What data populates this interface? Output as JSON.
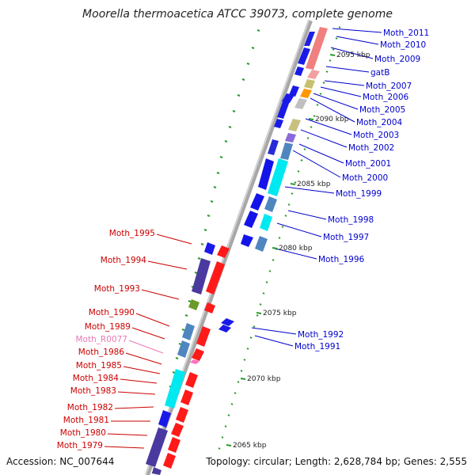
{
  "title": "Moorella thermoacetica ATCC 39073, complete genome",
  "footer": {
    "accession": "Accession: NC_007644",
    "topology": "Topology: circular; Length: 2,628,784 bp; Genes: 2,555"
  },
  "colors": {
    "forward_label": "#0000cc",
    "reverse_label": "#cc0000",
    "rna_label": "#e87ab8",
    "backbone": "#999999"
  },
  "kbp_markers": [
    {
      "label": "2095 kbp",
      "pos": 2095
    },
    {
      "label": "2090 kbp",
      "pos": 2090
    },
    {
      "label": "2085 kbp",
      "pos": 2085
    },
    {
      "label": "2080 kbp",
      "pos": 2080
    },
    {
      "label": "2075 kbp",
      "pos": 2075
    },
    {
      "label": "2070 kbp",
      "pos": 2070
    },
    {
      "label": "2065 kbp",
      "pos": 2065
    }
  ],
  "genes_right": [
    {
      "name": "Moth_2011"
    },
    {
      "name": "Moth_2010"
    },
    {
      "name": "Moth_2009"
    },
    {
      "name": "gatB"
    },
    {
      "name": "Moth_2007"
    },
    {
      "name": "Moth_2006"
    },
    {
      "name": "Moth_2005"
    },
    {
      "name": "Moth_2004"
    },
    {
      "name": "Moth_2003"
    },
    {
      "name": "Moth_2002"
    },
    {
      "name": "Moth_2001"
    },
    {
      "name": "Moth_2000"
    },
    {
      "name": "Moth_1999"
    },
    {
      "name": "Moth_1998"
    },
    {
      "name": "Moth_1997"
    },
    {
      "name": "Moth_1996"
    },
    {
      "name": "Moth_1992"
    },
    {
      "name": "Moth_1991"
    }
  ],
  "genes_left": [
    {
      "name": "Moth_1995"
    },
    {
      "name": "Moth_1994"
    },
    {
      "name": "Moth_1993"
    },
    {
      "name": "Moth_1990"
    },
    {
      "name": "Moth_1989"
    },
    {
      "name": "Moth_R0077",
      "rna": true
    },
    {
      "name": "Moth_1986"
    },
    {
      "name": "Moth_1985"
    },
    {
      "name": "Moth_1984"
    },
    {
      "name": "Moth_1983"
    },
    {
      "name": "Moth_1982"
    },
    {
      "name": "Moth_1981"
    },
    {
      "name": "Moth_1980"
    },
    {
      "name": "Moth_1979"
    }
  ]
}
